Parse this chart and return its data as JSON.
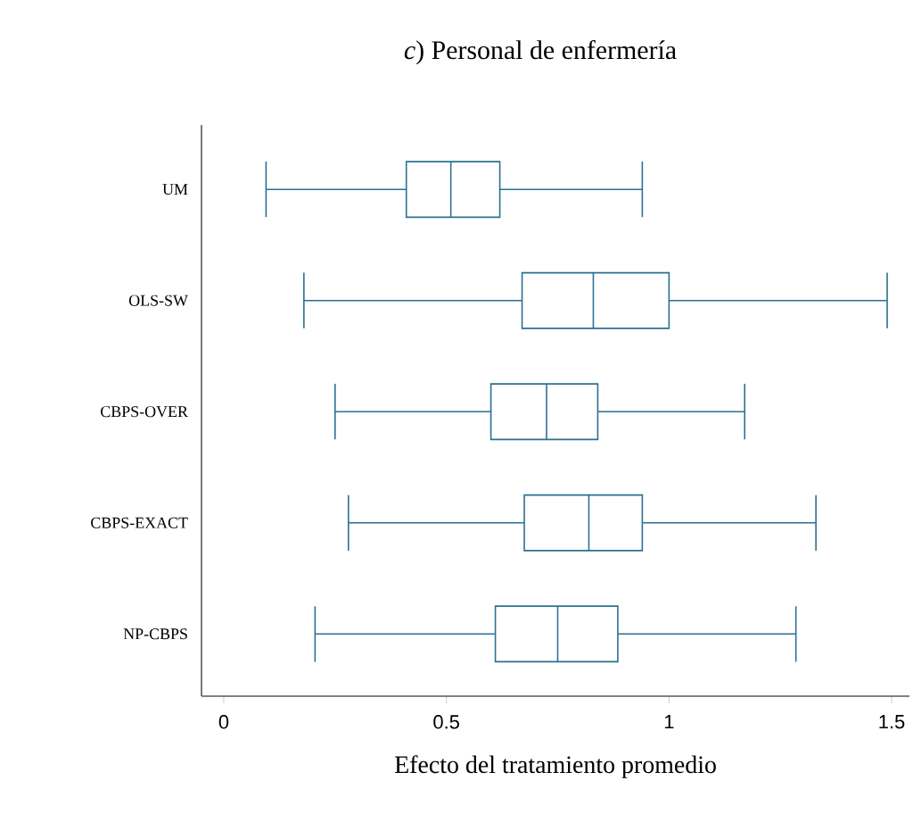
{
  "chart_data": {
    "type": "box",
    "orientation": "horizontal",
    "title": "*c*) Personal de enfermería",
    "xlabel": "Efecto del tratamiento promedio",
    "categories": [
      "UM",
      "OLS-SW",
      "CBPS-OVER",
      "CBPS-EXACT",
      "NP-CBPS"
    ],
    "boxes": [
      {
        "low": 0.095,
        "q1": 0.41,
        "median": 0.51,
        "q3": 0.62,
        "high": 0.94
      },
      {
        "low": 0.18,
        "q1": 0.67,
        "median": 0.83,
        "q3": 1.0,
        "high": 1.49
      },
      {
        "low": 0.25,
        "q1": 0.6,
        "median": 0.725,
        "q3": 0.84,
        "high": 1.17
      },
      {
        "low": 0.28,
        "q1": 0.675,
        "median": 0.82,
        "q3": 0.94,
        "high": 1.33
      },
      {
        "low": 0.205,
        "q1": 0.61,
        "median": 0.75,
        "q3": 0.885,
        "high": 1.285
      }
    ],
    "color": "#2b7191",
    "xlim": [
      -0.05,
      1.54
    ],
    "xticks": [
      0,
      0.5,
      1,
      1.5
    ]
  }
}
